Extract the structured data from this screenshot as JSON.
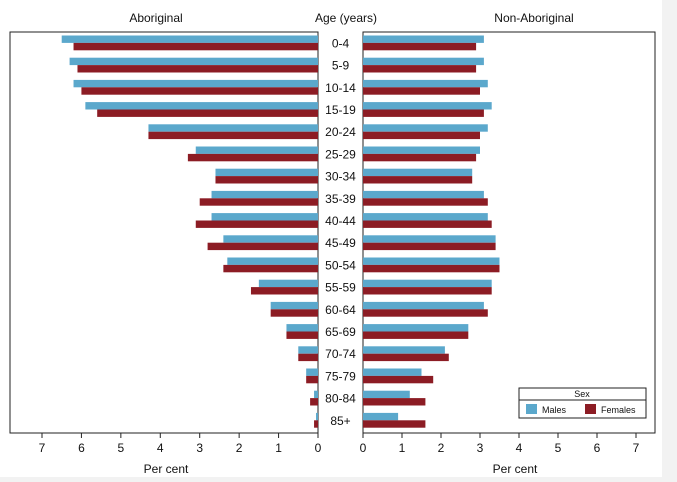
{
  "chart_data": {
    "type": "bar",
    "orientation": "horizontal",
    "layout": "population-pyramid",
    "panels": [
      {
        "title": "Aboriginal",
        "xlabel": "Per cent",
        "xlim": [
          0,
          7
        ],
        "xdirection": "reversed",
        "ticks": [
          "7",
          "6",
          "5",
          "4",
          "3",
          "2",
          "1",
          "0"
        ]
      },
      {
        "title": "Non-Aboriginal",
        "xlabel": "Per cent",
        "xlim": [
          0,
          7
        ],
        "xdirection": "normal",
        "ticks": [
          "0",
          "1",
          "2",
          "3",
          "4",
          "5",
          "6",
          "7"
        ]
      }
    ],
    "center_title": "Age (years)",
    "categories": [
      "0-4",
      "5-9",
      "10-14",
      "15-19",
      "20-24",
      "25-29",
      "30-34",
      "35-39",
      "40-44",
      "45-49",
      "50-54",
      "55-59",
      "60-64",
      "65-69",
      "70-74",
      "75-79",
      "80-84",
      "85+"
    ],
    "series": [
      {
        "name": "Males",
        "color": "#5ba8cc",
        "aboriginal": [
          6.5,
          6.3,
          6.2,
          5.9,
          4.3,
          3.1,
          2.6,
          2.7,
          2.7,
          2.4,
          2.3,
          1.5,
          1.2,
          0.8,
          0.5,
          0.3,
          0.1,
          0.05
        ],
        "non_aboriginal": [
          3.1,
          3.1,
          3.2,
          3.3,
          3.2,
          3.0,
          2.8,
          3.1,
          3.2,
          3.4,
          3.5,
          3.3,
          3.1,
          2.7,
          2.1,
          1.5,
          1.2,
          0.9
        ]
      },
      {
        "name": "Females",
        "color": "#8c1c24",
        "aboriginal": [
          6.2,
          6.1,
          6.0,
          5.6,
          4.3,
          3.3,
          2.6,
          3.0,
          3.1,
          2.8,
          2.4,
          1.7,
          1.2,
          0.8,
          0.5,
          0.3,
          0.2,
          0.1
        ],
        "non_aboriginal": [
          2.9,
          2.9,
          3.0,
          3.1,
          3.0,
          2.9,
          2.8,
          3.2,
          3.3,
          3.4,
          3.5,
          3.3,
          3.2,
          2.7,
          2.2,
          1.8,
          1.6,
          1.6
        ]
      }
    ],
    "legend": {
      "title": "Sex",
      "position": "bottom-right",
      "entries": [
        "Males",
        "Females"
      ]
    },
    "grid": false
  }
}
